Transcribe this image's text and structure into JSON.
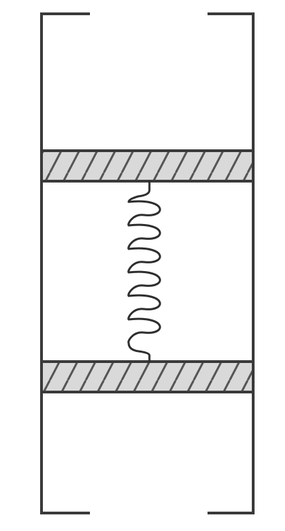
{
  "diagram": {
    "components": [
      "cylinder",
      "upper-piston",
      "spring",
      "lower-piston"
    ],
    "colors": {
      "background": "#ffffff",
      "line": "#3a3a3a",
      "piston_fill": "#d9d9d9",
      "hatch": "#555555",
      "spring": "#2e2e2e"
    },
    "spring_coils": 6
  }
}
